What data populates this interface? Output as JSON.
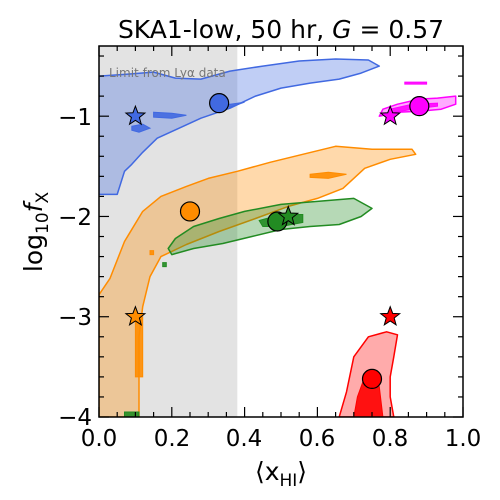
{
  "chart_data": {
    "type": "scatter",
    "title_parts": [
      "SKA1-low, 50 hr, ",
      "G",
      " = 0.57"
    ],
    "xlabel": "⟨x",
    "xlabel_sub": "HI",
    "xlabel_close": "⟩",
    "ylabel": "log",
    "ylabel_sub10": "10",
    "ylabel_f": "f",
    "ylabel_subX": "X",
    "xlim": [
      0.0,
      1.0
    ],
    "ylim": [
      -4.0,
      -0.3
    ],
    "xticks": [
      "0.0",
      "0.2",
      "0.4",
      "0.6",
      "0.8",
      "1.0"
    ],
    "yticks": [
      "−1",
      "−2",
      "−3",
      "−4"
    ],
    "shaded_region": {
      "x_from": 0.0,
      "x_to": 0.38,
      "label": "Limit from Lyα data",
      "color": "#e3e3e3"
    },
    "series": [
      {
        "color": "#4169e1",
        "truth": {
          "x": 0.1,
          "y": -1.0
        },
        "best_fit": {
          "x": 0.33,
          "y": -0.87
        },
        "outer": [
          [
            0.0,
            -1.78
          ],
          [
            0.05,
            -1.78
          ],
          [
            0.07,
            -1.55
          ],
          [
            0.09,
            -1.48
          ],
          [
            0.12,
            -1.36
          ],
          [
            0.16,
            -1.22
          ],
          [
            0.22,
            -1.12
          ],
          [
            0.28,
            -1.02
          ],
          [
            0.36,
            -0.92
          ],
          [
            0.43,
            -0.8
          ],
          [
            0.5,
            -0.72
          ],
          [
            0.58,
            -0.67
          ],
          [
            0.66,
            -0.63
          ],
          [
            0.72,
            -0.57
          ],
          [
            0.77,
            -0.5
          ],
          [
            0.74,
            -0.44
          ],
          [
            0.65,
            -0.43
          ],
          [
            0.55,
            -0.45
          ],
          [
            0.45,
            -0.5
          ],
          [
            0.36,
            -0.55
          ],
          [
            0.28,
            -0.63
          ],
          [
            0.21,
            -0.62
          ],
          [
            0.15,
            -0.56
          ],
          [
            0.08,
            -0.58
          ],
          [
            0.0,
            -0.6
          ]
        ],
        "inner_blobs": [
          [
            [
              0.15,
              -0.96
            ],
            [
              0.2,
              -0.97
            ],
            [
              0.24,
              -0.99
            ],
            [
              0.2,
              -1.02
            ],
            [
              0.15,
              -1.01
            ]
          ],
          [
            [
              0.32,
              -0.9
            ],
            [
              0.36,
              -0.88
            ],
            [
              0.4,
              -0.86
            ],
            [
              0.36,
              -0.91
            ]
          ],
          [
            [
              0.09,
              -1.1
            ],
            [
              0.12,
              -1.08
            ],
            [
              0.14,
              -1.12
            ],
            [
              0.11,
              -1.16
            ],
            [
              0.09,
              -1.14
            ]
          ]
        ]
      },
      {
        "color": "#ff8c00",
        "truth": {
          "x": 0.1,
          "y": -3.0
        },
        "best_fit": {
          "x": 0.25,
          "y": -1.95
        },
        "outer": [
          [
            0.0,
            -4.0
          ],
          [
            0.11,
            -4.0
          ],
          [
            0.11,
            -3.2
          ],
          [
            0.12,
            -2.9
          ],
          [
            0.14,
            -2.6
          ],
          [
            0.17,
            -2.4
          ],
          [
            0.24,
            -2.28
          ],
          [
            0.33,
            -2.15
          ],
          [
            0.43,
            -2.02
          ],
          [
            0.52,
            -1.9
          ],
          [
            0.6,
            -1.82
          ],
          [
            0.67,
            -1.72
          ],
          [
            0.73,
            -1.52
          ],
          [
            0.8,
            -1.43
          ],
          [
            0.87,
            -1.38
          ],
          [
            0.86,
            -1.33
          ],
          [
            0.75,
            -1.33
          ],
          [
            0.65,
            -1.3
          ],
          [
            0.56,
            -1.38
          ],
          [
            0.47,
            -1.46
          ],
          [
            0.38,
            -1.55
          ],
          [
            0.3,
            -1.62
          ],
          [
            0.24,
            -1.7
          ],
          [
            0.17,
            -1.8
          ],
          [
            0.12,
            -1.95
          ],
          [
            0.07,
            -2.25
          ],
          [
            0.03,
            -2.62
          ],
          [
            0.0,
            -2.78
          ]
        ],
        "inner_blobs": [
          [
            [
              0.58,
              -1.58
            ],
            [
              0.63,
              -1.56
            ],
            [
              0.68,
              -1.58
            ],
            [
              0.63,
              -1.62
            ],
            [
              0.58,
              -1.61
            ]
          ],
          [
            [
              0.1,
              -3.0
            ],
            [
              0.12,
              -3.0
            ],
            [
              0.12,
              -3.6
            ],
            [
              0.1,
              -3.6
            ]
          ],
          [
            [
              0.14,
              -2.34
            ],
            [
              0.15,
              -2.34
            ],
            [
              0.15,
              -2.38
            ],
            [
              0.14,
              -2.38
            ]
          ]
        ]
      },
      {
        "color": "#228b22",
        "truth": {
          "x": 0.52,
          "y": -2.0
        },
        "best_fit": {
          "x": 0.49,
          "y": -2.05
        },
        "outer": [
          [
            0.2,
            -2.38
          ],
          [
            0.26,
            -2.32
          ],
          [
            0.34,
            -2.27
          ],
          [
            0.42,
            -2.2
          ],
          [
            0.5,
            -2.13
          ],
          [
            0.58,
            -2.1
          ],
          [
            0.66,
            -2.08
          ],
          [
            0.72,
            -2.0
          ],
          [
            0.75,
            -1.92
          ],
          [
            0.7,
            -1.82
          ],
          [
            0.6,
            -1.85
          ],
          [
            0.5,
            -1.88
          ],
          [
            0.4,
            -1.95
          ],
          [
            0.33,
            -2.02
          ],
          [
            0.26,
            -2.1
          ],
          [
            0.21,
            -2.22
          ],
          [
            0.19,
            -2.32
          ]
        ],
        "inner_blobs": [
          [
            [
              0.44,
              -2.04
            ],
            [
              0.5,
              -1.98
            ],
            [
              0.56,
              -1.98
            ],
            [
              0.56,
              -2.06
            ],
            [
              0.5,
              -2.1
            ],
            [
              0.45,
              -2.1
            ]
          ],
          [
            [
              0.175,
              -2.46
            ],
            [
              0.185,
              -2.46
            ],
            [
              0.185,
              -2.5
            ],
            [
              0.175,
              -2.5
            ]
          ],
          [
            [
              0.07,
              -3.95
            ],
            [
              0.11,
              -3.95
            ],
            [
              0.11,
              -4.0
            ],
            [
              0.07,
              -4.0
            ]
          ]
        ]
      },
      {
        "color": "#ff00ff",
        "truth": {
          "x": 0.8,
          "y": -1.0
        },
        "best_fit": {
          "x": 0.88,
          "y": -0.9
        },
        "outer": [
          [
            0.77,
            -1.0
          ],
          [
            0.82,
            -0.96
          ],
          [
            0.88,
            -0.95
          ],
          [
            0.94,
            -0.93
          ],
          [
            0.98,
            -0.88
          ],
          [
            0.98,
            -0.8
          ],
          [
            0.93,
            -0.82
          ],
          [
            0.88,
            -0.83
          ],
          [
            0.82,
            -0.88
          ],
          [
            0.78,
            -0.93
          ]
        ],
        "inner_blobs": [
          [
            [
              0.8,
              -0.97
            ],
            [
              0.86,
              -0.93
            ],
            [
              0.93,
              -0.9
            ],
            [
              0.93,
              -0.87
            ],
            [
              0.86,
              -0.88
            ],
            [
              0.8,
              -0.93
            ]
          ],
          [
            [
              0.84,
              -0.66
            ],
            [
              0.9,
              -0.66
            ],
            [
              0.9,
              -0.68
            ],
            [
              0.84,
              -0.68
            ]
          ]
        ]
      },
      {
        "color": "#ff0000",
        "truth": {
          "x": 0.8,
          "y": -3.0
        },
        "best_fit": {
          "x": 0.75,
          "y": -3.62
        },
        "outer": [
          [
            0.66,
            -4.0
          ],
          [
            0.68,
            -3.75
          ],
          [
            0.7,
            -3.4
          ],
          [
            0.74,
            -3.2
          ],
          [
            0.79,
            -3.15
          ],
          [
            0.82,
            -3.18
          ],
          [
            0.81,
            -3.4
          ],
          [
            0.8,
            -3.6
          ],
          [
            0.8,
            -3.8
          ],
          [
            0.81,
            -4.0
          ]
        ],
        "inner_blobs": [
          [
            [
              0.7,
              -4.0
            ],
            [
              0.71,
              -3.8
            ],
            [
              0.73,
              -3.6
            ],
            [
              0.76,
              -3.55
            ],
            [
              0.77,
              -3.7
            ],
            [
              0.78,
              -4.0
            ]
          ]
        ]
      }
    ]
  }
}
